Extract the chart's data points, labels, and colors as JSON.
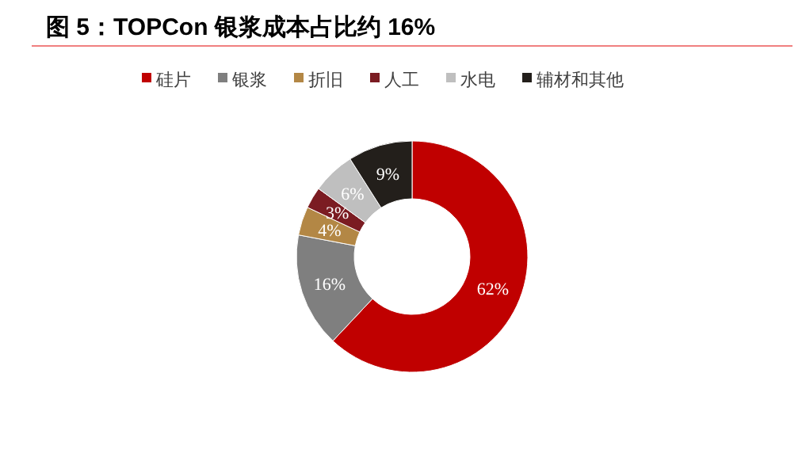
{
  "chart_data": {
    "type": "donut",
    "title": "图 5：TOPCon 银浆成本占比约 16%",
    "categories": [
      "硅片",
      "银浆",
      "折旧",
      "人工",
      "水电",
      "辅材和其他"
    ],
    "values": [
      62,
      16,
      4,
      3,
      6,
      9
    ],
    "colors": [
      "#c00000",
      "#7f7f7f",
      "#b38745",
      "#7b1c22",
      "#bfbfbf",
      "#231f1b"
    ],
    "value_labels": [
      "62%",
      "16%",
      "4%",
      "3%",
      "6%",
      "9%"
    ],
    "legend": "top"
  }
}
